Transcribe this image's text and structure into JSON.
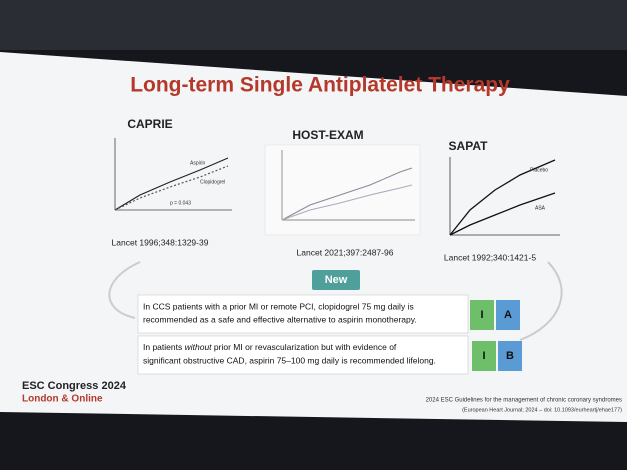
{
  "slide": {
    "title": "Long-term Single Antiplatelet Therapy",
    "studies": [
      {
        "name": "CAPRIE",
        "citation": "Lancet 1996;348:1329-39",
        "labels": [
          "Aspirin",
          "Clopidogrel",
          "p = 0.043"
        ]
      },
      {
        "name": "HOST-EXAM",
        "citation": "Lancet 2021;397:2487-96"
      },
      {
        "name": "SAPAT",
        "citation": "Lancet 1992;340:1421-5",
        "labels": [
          "Placebo",
          "ASA"
        ]
      }
    ],
    "badge": "New",
    "recommendations": [
      {
        "lines": [
          "In CCS patients with a prior MI or remote PCI, clopidogrel 75 mg daily is",
          "recommended as a safe and effective alternative to aspirin monotherapy."
        ],
        "class": "I",
        "level": "A"
      },
      {
        "line1_start": "In patients",
        "line1_emphasis": "without",
        "line1_end": "prior MI or revascularization but with evidence of",
        "line2": "significant obstructive CAD, aspirin 75–100 mg daily is recommended lifelong.",
        "class": "I",
        "level": "B"
      }
    ],
    "footer": {
      "event": "ESC Congress 2024",
      "location": "London & Online",
      "guideline": "2024 ESC Guidelines for the management of chronic coronary syndromes",
      "reference": "(European Heart Journal; 2024 – doi: 10.1093/eurheartj/ehae177)"
    }
  }
}
